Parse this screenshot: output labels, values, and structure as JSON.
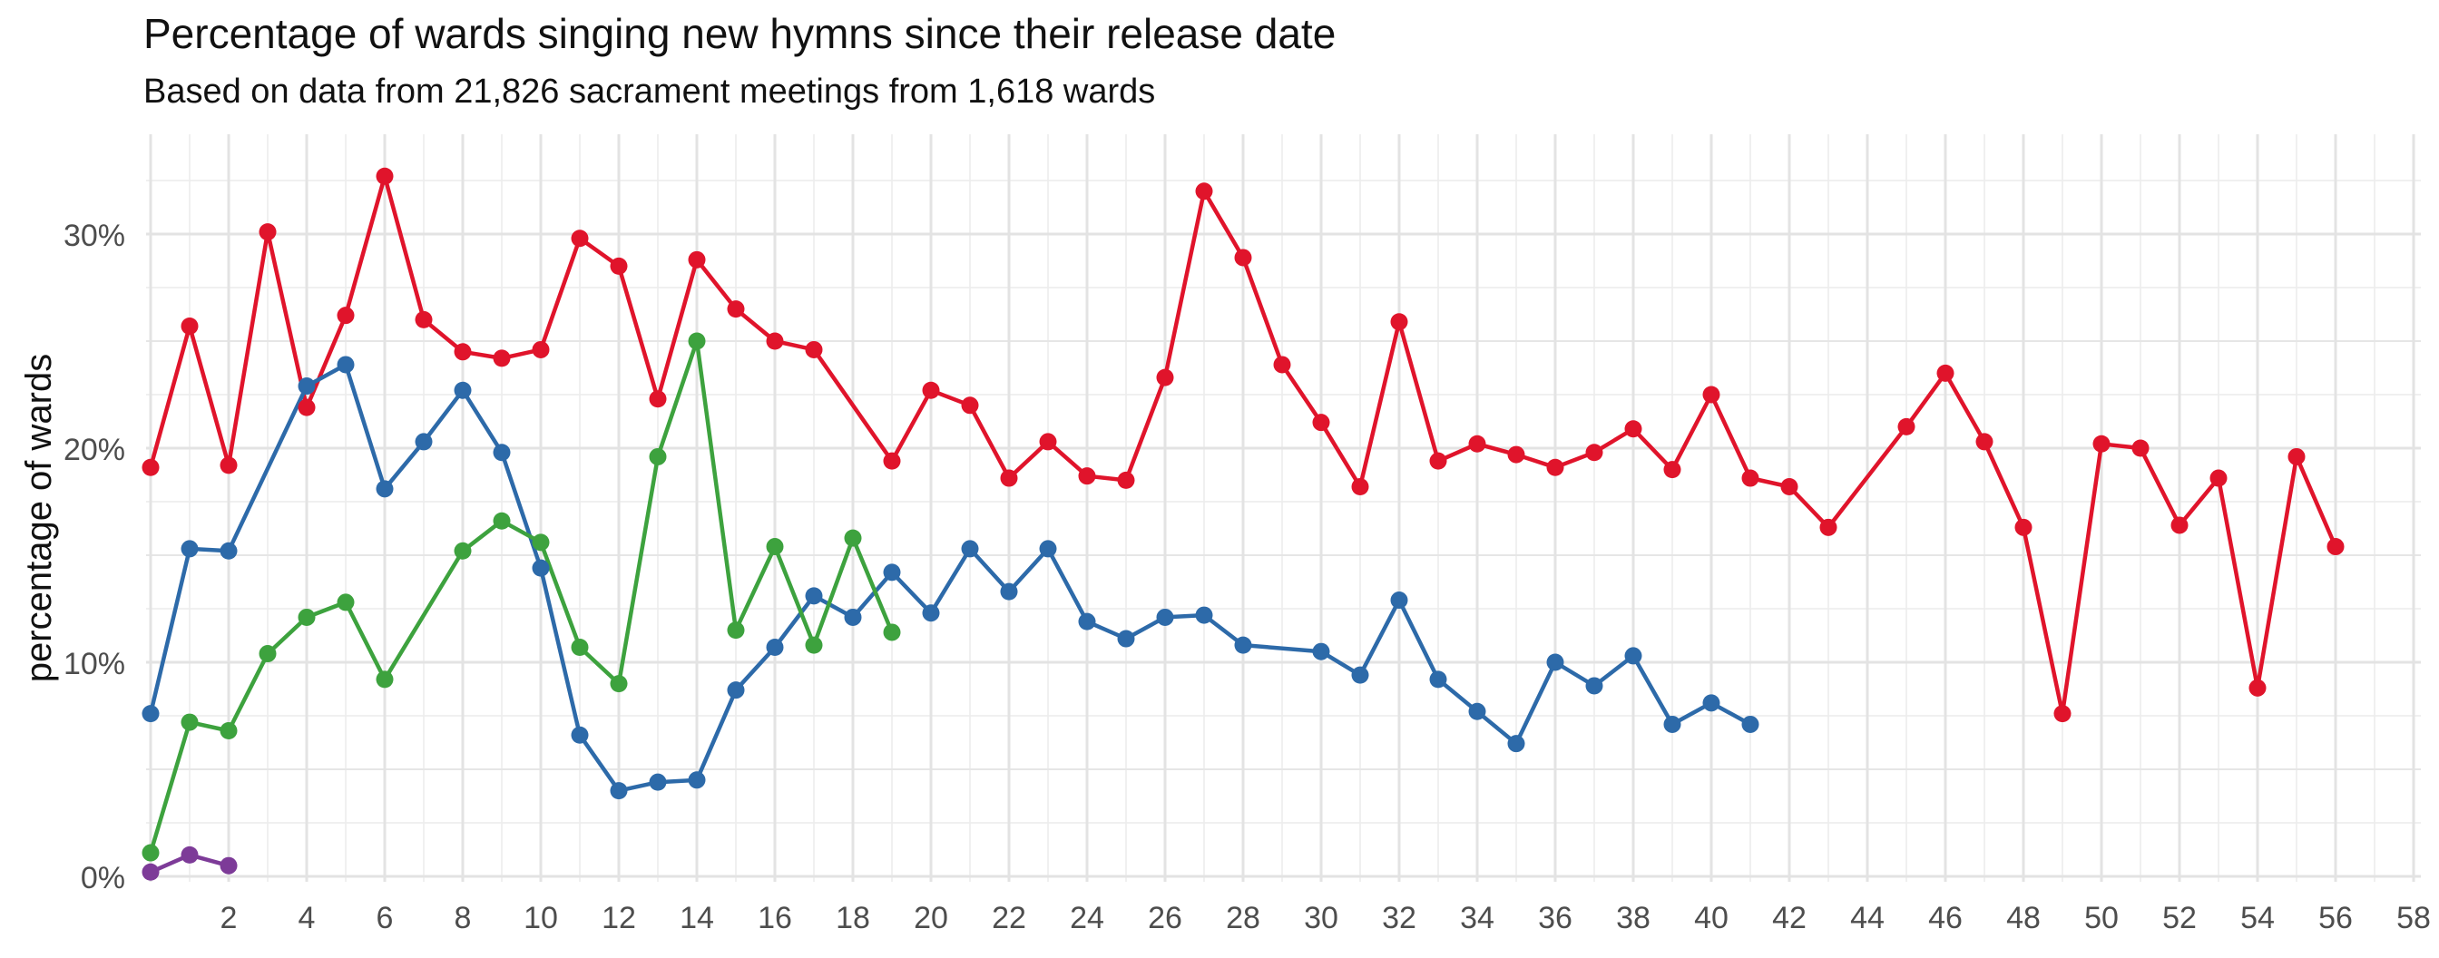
{
  "chart_data": {
    "type": "line",
    "title": "Percentage of wards singing new hymns since their release date",
    "subtitle": "Based on data from 21,826 sacrament meetings from 1,618 wards",
    "xlabel": "",
    "ylabel": "percentage of wards",
    "xlim": [
      0,
      58
    ],
    "ylim": [
      0,
      33
    ],
    "x_ticks": [
      2,
      4,
      6,
      8,
      10,
      12,
      14,
      16,
      18,
      20,
      22,
      24,
      26,
      28,
      30,
      32,
      34,
      36,
      38,
      40,
      42,
      44,
      46,
      48,
      50,
      52,
      54,
      56,
      58
    ],
    "x_tick_labels": [
      "2",
      "4",
      "6",
      "8",
      "10",
      "12",
      "14",
      "16",
      "18",
      "20",
      "22",
      "24",
      "26",
      "28",
      "30",
      "32",
      "34",
      "36",
      "38",
      "40",
      "42",
      "44",
      "46",
      "48",
      "50",
      "52",
      "54",
      "56",
      "58"
    ],
    "y_ticks": [
      0,
      10,
      20,
      30
    ],
    "y_tick_labels": [
      "0%",
      "10%",
      "20%",
      "30%"
    ],
    "grid": true,
    "legend": "none",
    "series": [
      {
        "color": "#e0142b",
        "points": [
          [
            0,
            19.1
          ],
          [
            1,
            25.7
          ],
          [
            2,
            19.2
          ],
          [
            3,
            30.1
          ],
          [
            4,
            21.9
          ],
          [
            5,
            26.2
          ],
          [
            6,
            32.7
          ],
          [
            7,
            26.0
          ],
          [
            8,
            24.5
          ],
          [
            9,
            24.2
          ],
          [
            10,
            24.6
          ],
          [
            11,
            29.8
          ],
          [
            12,
            28.5
          ],
          [
            13,
            22.3
          ],
          [
            14,
            28.8
          ],
          [
            15,
            26.5
          ],
          [
            16,
            25.0
          ],
          [
            17,
            24.6
          ],
          [
            19,
            19.4
          ],
          [
            20,
            22.7
          ],
          [
            21,
            22.0
          ],
          [
            22,
            18.6
          ],
          [
            23,
            20.3
          ],
          [
            24,
            18.7
          ],
          [
            25,
            18.5
          ],
          [
            26,
            23.3
          ],
          [
            27,
            32.0
          ],
          [
            28,
            28.9
          ],
          [
            29,
            23.9
          ],
          [
            30,
            21.2
          ],
          [
            31,
            18.2
          ],
          [
            32,
            25.9
          ],
          [
            33,
            19.4
          ],
          [
            34,
            20.2
          ],
          [
            35,
            19.7
          ],
          [
            36,
            19.1
          ],
          [
            37,
            19.8
          ],
          [
            38,
            20.9
          ],
          [
            39,
            19.0
          ],
          [
            40,
            22.5
          ],
          [
            41,
            18.6
          ],
          [
            42,
            18.2
          ],
          [
            43,
            16.3
          ],
          [
            45,
            21.0
          ],
          [
            46,
            23.5
          ],
          [
            47,
            20.3
          ],
          [
            48,
            16.3
          ],
          [
            49,
            7.6
          ],
          [
            50,
            20.2
          ],
          [
            51,
            20.0
          ],
          [
            52,
            16.4
          ],
          [
            53,
            18.6
          ],
          [
            54,
            8.8
          ],
          [
            55,
            19.6
          ],
          [
            56,
            15.4
          ]
        ]
      },
      {
        "color": "#2d6aa9",
        "points": [
          [
            0,
            7.6
          ],
          [
            1,
            15.3
          ],
          [
            2,
            15.2
          ],
          [
            4,
            22.9
          ],
          [
            5,
            23.9
          ],
          [
            6,
            18.1
          ],
          [
            7,
            20.3
          ],
          [
            8,
            22.7
          ],
          [
            9,
            19.8
          ],
          [
            10,
            14.4
          ],
          [
            11,
            6.6
          ],
          [
            12,
            4.0
          ],
          [
            13,
            4.4
          ],
          [
            14,
            4.5
          ],
          [
            15,
            8.7
          ],
          [
            16,
            10.7
          ],
          [
            17,
            13.1
          ],
          [
            18,
            12.1
          ],
          [
            19,
            14.2
          ],
          [
            20,
            12.3
          ],
          [
            21,
            15.3
          ],
          [
            22,
            13.3
          ],
          [
            23,
            15.3
          ],
          [
            24,
            11.9
          ],
          [
            25,
            11.1
          ],
          [
            26,
            12.1
          ],
          [
            27,
            12.2
          ],
          [
            28,
            10.8
          ],
          [
            30,
            10.5
          ],
          [
            31,
            9.4
          ],
          [
            32,
            12.9
          ],
          [
            33,
            9.2
          ],
          [
            34,
            7.7
          ],
          [
            35,
            6.2
          ],
          [
            36,
            10.0
          ],
          [
            37,
            8.9
          ],
          [
            38,
            10.3
          ],
          [
            39,
            7.1
          ],
          [
            40,
            8.1
          ],
          [
            41,
            7.1
          ]
        ]
      },
      {
        "color": "#3da23e",
        "points": [
          [
            0,
            1.1
          ],
          [
            1,
            7.2
          ],
          [
            2,
            6.8
          ],
          [
            3,
            10.4
          ],
          [
            4,
            12.1
          ],
          [
            5,
            12.8
          ],
          [
            6,
            9.2
          ],
          [
            8,
            15.2
          ],
          [
            9,
            16.6
          ],
          [
            10,
            15.6
          ],
          [
            11,
            10.7
          ],
          [
            12,
            9.0
          ],
          [
            13,
            19.6
          ],
          [
            14,
            25.0
          ],
          [
            15,
            11.5
          ],
          [
            16,
            15.4
          ],
          [
            17,
            10.8
          ],
          [
            18,
            15.8
          ],
          [
            19,
            11.4
          ]
        ]
      },
      {
        "color": "#7d3b98",
        "points": [
          [
            0,
            0.2
          ],
          [
            1,
            1.0
          ],
          [
            2,
            0.5
          ]
        ]
      }
    ]
  }
}
